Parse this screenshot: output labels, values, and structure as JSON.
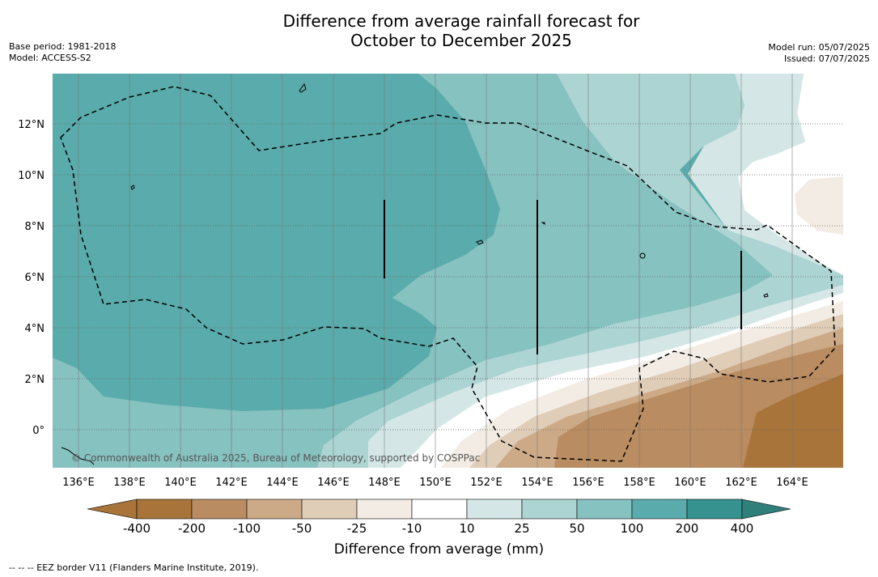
{
  "title_line1": "Difference from average rainfall forecast for",
  "title_line2": "October to December 2025",
  "base_period": "Base period: 1981-2018",
  "model": "Model: ACCESS-S2",
  "model_run": "Model run: 05/07/2025",
  "issued": "Issued: 07/07/2025",
  "copyright": "© Commonwealth of Australia 2025, Bureau of Meteorology, supported by COSPPac",
  "lon_labels": [
    "136°E",
    "138°E",
    "140°E",
    "142°E",
    "144°E",
    "146°E",
    "148°E",
    "150°E",
    "152°E",
    "154°E",
    "156°E",
    "158°E",
    "160°E",
    "162°E",
    "164°E"
  ],
  "lat_labels": [
    "12°N",
    "10°N",
    "8°N",
    "6°N",
    "4°N",
    "2°N",
    "0°"
  ],
  "colorbar": {
    "ticks": [
      "-400",
      "-200",
      "-100",
      "-50",
      "-25",
      "-10",
      "10",
      "25",
      "50",
      "100",
      "200",
      "400"
    ],
    "colors": [
      "#a8743a",
      "#b98c61",
      "#ccaa87",
      "#e0cdb7",
      "#f2ece4",
      "#ffffff",
      "#d4e7e6",
      "#acd4d3",
      "#86c2c0",
      "#5aabab",
      "#35928e"
    ],
    "title": "Difference from average (mm)"
  },
  "legend_footer": "--  --  -- EEZ border V11 (Flanders Marine Institute, 2019)."
}
